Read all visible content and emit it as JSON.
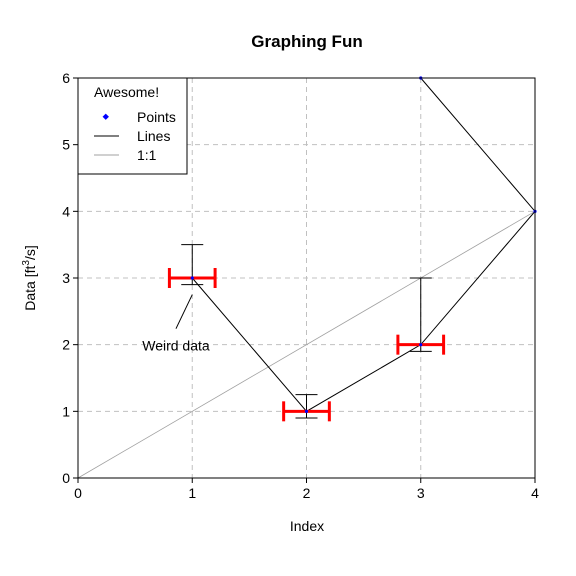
{
  "chart_data": {
    "type": "scatter",
    "title": "Graphing Fun",
    "xlabel": "Index",
    "ylabel": {
      "main": "Data [ft",
      "sup": "3",
      "tail": "/s]"
    },
    "xlim": [
      0,
      4
    ],
    "ylim": [
      0,
      6
    ],
    "xticks": [
      0,
      1,
      2,
      3,
      4
    ],
    "yticks": [
      0,
      1,
      2,
      3,
      4,
      5,
      6
    ],
    "grid": true,
    "legend": {
      "title": "Awesome!",
      "placement": "top-left",
      "entries": [
        {
          "name": "Points",
          "kind": "point",
          "color": "#0000ff"
        },
        {
          "name": "Lines",
          "kind": "line",
          "color": "#000000"
        },
        {
          "name": "1:1",
          "kind": "line",
          "color": "#a0a0a0"
        }
      ]
    },
    "points": {
      "x": [
        1,
        2,
        3,
        4,
        3
      ],
      "y": [
        3,
        1,
        2,
        4,
        6
      ],
      "color": "#0000ff"
    },
    "lines": {
      "x": [
        1,
        2,
        3,
        4,
        3
      ],
      "y": [
        3,
        1,
        2,
        4,
        6
      ],
      "color": "#000000"
    },
    "one_to_one": {
      "x": [
        0,
        4
      ],
      "y": [
        0,
        4
      ],
      "color": "#a0a0a0"
    },
    "y_error_bars": [
      {
        "x": 1,
        "low": 2.9,
        "high": 3.5
      },
      {
        "x": 2,
        "low": 0.9,
        "high": 1.25
      },
      {
        "x": 3,
        "low": 1.9,
        "high": 3.0
      }
    ],
    "x_error_bars": [
      {
        "y": 3,
        "low": 0.8,
        "high": 1.2,
        "color": "#ff0000"
      },
      {
        "y": 1,
        "low": 1.8,
        "high": 2.2,
        "color": "#ff0000"
      },
      {
        "y": 2,
        "low": 2.8,
        "high": 3.2,
        "color": "#ff0000"
      }
    ],
    "annotations": [
      {
        "text": "Weird data",
        "x": 0.98,
        "y": 2.0,
        "arrow_to": {
          "x": 1.0,
          "y": 2.75
        }
      }
    ]
  }
}
